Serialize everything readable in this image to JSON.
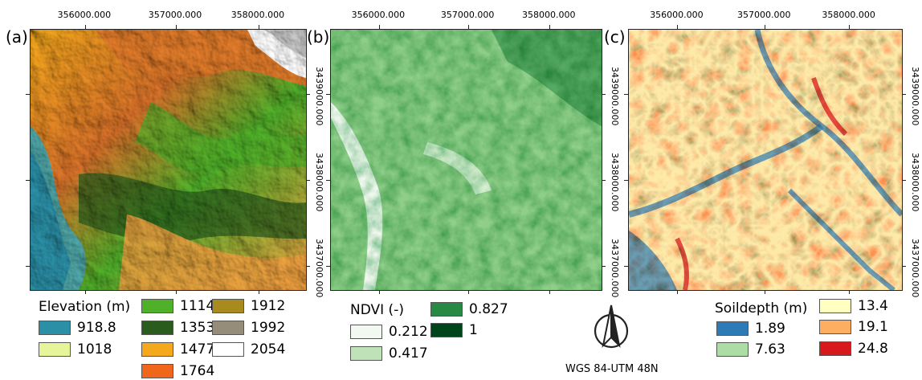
{
  "top_ticks": [
    {
      "label": "356000.000",
      "panel": 0,
      "frac": 0.2
    },
    {
      "label": "357000.000",
      "panel": 0,
      "frac": 0.53
    },
    {
      "label": "358000.000",
      "panel": 0,
      "frac": 0.83
    },
    {
      "label": "356000.000",
      "panel": 1,
      "frac": 0.18
    },
    {
      "label": "357000.000",
      "panel": 1,
      "frac": 0.51
    },
    {
      "label": "358000.000",
      "panel": 1,
      "frac": 0.81
    },
    {
      "label": "356000.000",
      "panel": 2,
      "frac": 0.18
    },
    {
      "label": "357000.000",
      "panel": 2,
      "frac": 0.5
    },
    {
      "label": "358000.000",
      "panel": 2,
      "frac": 0.81
    }
  ],
  "right_ticks": [
    {
      "label": "3439000.000",
      "frac": 0.25
    },
    {
      "label": "3438000.000",
      "frac": 0.58
    },
    {
      "label": "3437000.000",
      "frac": 0.91
    }
  ],
  "panels": [
    {
      "letter": "(a)",
      "name": "elevation"
    },
    {
      "letter": "(b)",
      "name": "ndvi"
    },
    {
      "letter": "(c)",
      "name": "soildepth"
    }
  ],
  "legends": {
    "elevation": {
      "title": "Elevation (m)",
      "items": [
        {
          "label": "918.8",
          "color": "#2b8fa6"
        },
        {
          "label": "1018",
          "color": "#e6f59a"
        },
        {
          "label": "1114",
          "color": "#4fb02a"
        },
        {
          "label": "1353",
          "color": "#2a5c1e"
        },
        {
          "label": "1477",
          "color": "#f4a91c"
        },
        {
          "label": "1764",
          "color": "#f0661b"
        },
        {
          "label": "1912",
          "color": "#a98a1f"
        },
        {
          "label": "1992",
          "color": "#958c7a"
        },
        {
          "label": "2054",
          "color": "#ffffff"
        }
      ]
    },
    "ndvi": {
      "title": "NDVI (-)",
      "items": [
        {
          "label": "0.212",
          "color": "#f2f9f0"
        },
        {
          "label": "0.417",
          "color": "#bfe2b8"
        },
        {
          "label": "0.827",
          "color": "#268a45"
        },
        {
          "label": "1",
          "color": "#00441b"
        }
      ]
    },
    "soildepth": {
      "title": "Soildepth (m)",
      "items": [
        {
          "label": "1.89",
          "color": "#2c7bb6"
        },
        {
          "label": "7.63",
          "color": "#abdda4"
        },
        {
          "label": "13.4",
          "color": "#ffffbf"
        },
        {
          "label": "19.1",
          "color": "#fdae61"
        },
        {
          "label": "24.8",
          "color": "#d7191c"
        }
      ]
    }
  },
  "north_arrow": {
    "icon": "north-arrow-icon"
  },
  "crs_label": "WGS 84-UTM 48N"
}
